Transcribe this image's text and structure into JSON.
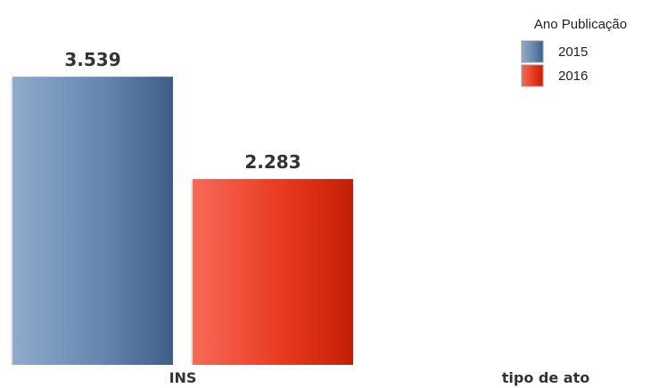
{
  "chart_data": {
    "type": "bar",
    "categories": [
      "INS"
    ],
    "series": [
      {
        "name": "2015",
        "values": [
          3539
        ],
        "display": [
          "3.539"
        ],
        "color": "#5a7ea9"
      },
      {
        "name": "2016",
        "values": [
          2283
        ],
        "display": [
          "2.283"
        ],
        "color": "#e8321a"
      }
    ],
    "title": "",
    "xlabel": "tipo de ato",
    "ylabel": "",
    "ylim": [
      0,
      3800
    ],
    "grid": false,
    "legend": {
      "title": "Ano Publicação",
      "placement": "top-right"
    }
  }
}
